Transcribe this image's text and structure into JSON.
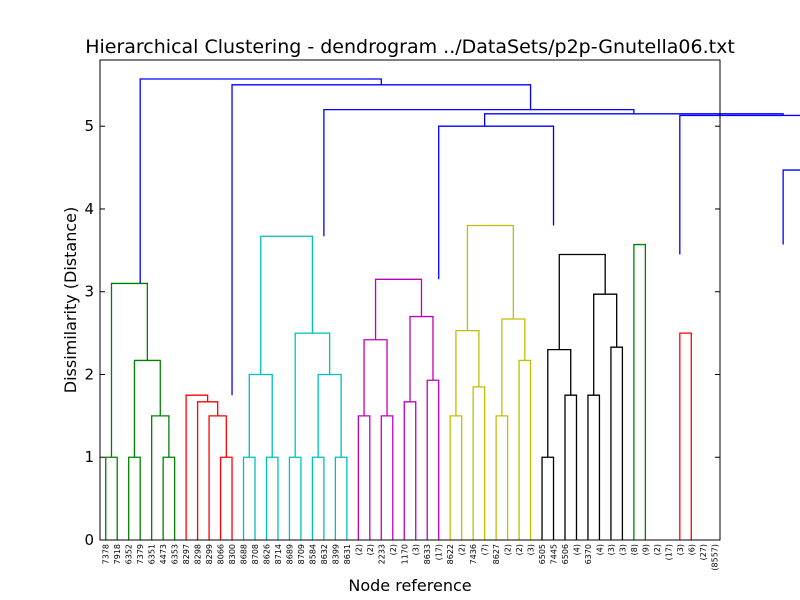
{
  "chart_data": {
    "type": "dendrogram",
    "title": "Hierarchical Clustering - dendrogram ../DataSets/p2p-Gnutella06.txt",
    "xlabel": "Node reference",
    "ylabel": "Dissimilarity (Distance)",
    "ylim": [
      0,
      5.8
    ],
    "yticks": [
      "0",
      "1",
      "2",
      "3",
      "4",
      "5"
    ],
    "leaves": [
      "7378",
      "7918",
      "6352",
      "7379",
      "6351",
      "4473",
      "6353",
      "8297",
      "8298",
      "8299",
      "8066",
      "8300",
      "8688",
      "8708",
      "8626",
      "8714",
      "8689",
      "8709",
      "8584",
      "8632",
      "8399",
      "8631",
      "(2)",
      "(2)",
      "2233",
      "(2)",
      "1170",
      "(3)",
      "8633",
      "(17)",
      "8622",
      "(2)",
      "7436",
      "(7)",
      "8627",
      "(2)",
      "(2)",
      "(3)",
      "6505",
      "7445",
      "6506",
      "(4)",
      "6370",
      "(4)",
      "(3)",
      "(3)",
      "(8)",
      "(9)",
      "(2)",
      "(17)",
      "(3)",
      "(6)",
      "(27)",
      "(8557)"
    ],
    "links": [
      {
        "color": "#008000",
        "height": 1.0,
        "left": [
          0,
          0
        ],
        "right": [
          1,
          0
        ]
      },
      {
        "color": "#008000",
        "height": 1.0,
        "left": [
          2,
          0
        ],
        "right": [
          3,
          0
        ]
      },
      {
        "color": "#008000",
        "height": 1.0,
        "left": [
          5,
          0
        ],
        "right": [
          6,
          0
        ]
      },
      {
        "color": "#008000",
        "height": 1.5,
        "left": [
          4,
          0
        ],
        "right": [
          5.5,
          1.0
        ]
      },
      {
        "color": "#008000",
        "height": 2.17,
        "left": [
          2.5,
          1.0
        ],
        "right": [
          4.75,
          1.5
        ]
      },
      {
        "color": "#008000",
        "height": 3.1,
        "left": [
          0.5,
          1.0
        ],
        "right": [
          3.625,
          2.17
        ]
      },
      {
        "color": "#ff0000",
        "height": 1.0,
        "left": [
          10,
          0
        ],
        "right": [
          11,
          0
        ]
      },
      {
        "color": "#ff0000",
        "height": 1.5,
        "left": [
          9,
          0
        ],
        "right": [
          10.5,
          1.0
        ]
      },
      {
        "color": "#ff0000",
        "height": 1.67,
        "left": [
          8,
          0
        ],
        "right": [
          9.75,
          1.5
        ]
      },
      {
        "color": "#ff0000",
        "height": 1.75,
        "left": [
          7,
          0
        ],
        "right": [
          8.875,
          1.67
        ]
      },
      {
        "color": "#00bfbf",
        "height": 1.0,
        "left": [
          12,
          0
        ],
        "right": [
          13,
          0
        ]
      },
      {
        "color": "#00bfbf",
        "height": 1.0,
        "left": [
          14,
          0
        ],
        "right": [
          15,
          0
        ]
      },
      {
        "color": "#00bfbf",
        "height": 1.0,
        "left": [
          16,
          0
        ],
        "right": [
          17,
          0
        ]
      },
      {
        "color": "#00bfbf",
        "height": 1.0,
        "left": [
          18,
          0
        ],
        "right": [
          19,
          0
        ]
      },
      {
        "color": "#00bfbf",
        "height": 1.0,
        "left": [
          20,
          0
        ],
        "right": [
          21,
          0
        ]
      },
      {
        "color": "#00bfbf",
        "height": 2.0,
        "left": [
          12.5,
          1.0
        ],
        "right": [
          14.5,
          1.0
        ]
      },
      {
        "color": "#00bfbf",
        "height": 2.0,
        "left": [
          18.5,
          1.0
        ],
        "right": [
          20.5,
          1.0
        ]
      },
      {
        "color": "#00bfbf",
        "height": 2.5,
        "left": [
          16.5,
          1.0
        ],
        "right": [
          19.5,
          2.0
        ]
      },
      {
        "color": "#00bfbf",
        "height": 3.67,
        "left": [
          13.5,
          2.0
        ],
        "right": [
          18.0,
          2.5
        ]
      },
      {
        "color": "#bf00bf",
        "height": 1.5,
        "left": [
          22,
          0
        ],
        "right": [
          23,
          0
        ]
      },
      {
        "color": "#bf00bf",
        "height": 1.5,
        "left": [
          24,
          0
        ],
        "right": [
          25,
          0
        ]
      },
      {
        "color": "#bf00bf",
        "height": 1.67,
        "left": [
          26,
          0
        ],
        "right": [
          27,
          0
        ]
      },
      {
        "color": "#bf00bf",
        "height": 1.93,
        "left": [
          28,
          0
        ],
        "right": [
          29,
          0
        ]
      },
      {
        "color": "#bf00bf",
        "height": 2.42,
        "left": [
          22.5,
          1.5
        ],
        "right": [
          24.5,
          1.5
        ]
      },
      {
        "color": "#bf00bf",
        "height": 2.7,
        "left": [
          26.5,
          1.67
        ],
        "right": [
          28.5,
          1.93
        ]
      },
      {
        "color": "#bf00bf",
        "height": 3.15,
        "left": [
          23.5,
          2.42
        ],
        "right": [
          27.5,
          2.7
        ]
      },
      {
        "color": "#bfbf00",
        "height": 1.5,
        "left": [
          30,
          0
        ],
        "right": [
          31,
          0
        ]
      },
      {
        "color": "#bfbf00",
        "height": 1.85,
        "left": [
          32,
          0
        ],
        "right": [
          33,
          0
        ]
      },
      {
        "color": "#bfbf00",
        "height": 1.5,
        "left": [
          34,
          0
        ],
        "right": [
          35,
          0
        ]
      },
      {
        "color": "#bfbf00",
        "height": 2.17,
        "left": [
          36,
          0
        ],
        "right": [
          37,
          0
        ]
      },
      {
        "color": "#bfbf00",
        "height": 2.53,
        "left": [
          30.5,
          1.5
        ],
        "right": [
          32.5,
          1.85
        ]
      },
      {
        "color": "#bfbf00",
        "height": 2.67,
        "left": [
          34.5,
          1.5
        ],
        "right": [
          36.5,
          2.17
        ]
      },
      {
        "color": "#bfbf00",
        "height": 3.8,
        "left": [
          31.5,
          2.53
        ],
        "right": [
          35.5,
          2.67
        ]
      },
      {
        "color": "#000000",
        "height": 1.0,
        "left": [
          38,
          0
        ],
        "right": [
          39,
          0
        ]
      },
      {
        "color": "#000000",
        "height": 1.75,
        "left": [
          40,
          0
        ],
        "right": [
          41,
          0
        ]
      },
      {
        "color": "#000000",
        "height": 2.3,
        "left": [
          38.5,
          1.0
        ],
        "right": [
          40.5,
          1.75
        ]
      },
      {
        "color": "#000000",
        "height": 1.75,
        "left": [
          42,
          0
        ],
        "right": [
          43,
          0
        ]
      },
      {
        "color": "#000000",
        "height": 2.33,
        "left": [
          44,
          0
        ],
        "right": [
          45,
          0
        ]
      },
      {
        "color": "#000000",
        "height": 2.97,
        "left": [
          42.5,
          1.75
        ],
        "right": [
          44.5,
          2.33
        ]
      },
      {
        "color": "#000000",
        "height": 3.45,
        "left": [
          39.5,
          2.3
        ],
        "right": [
          43.5,
          2.97
        ]
      },
      {
        "color": "#008000",
        "height": 3.57,
        "left": [
          46,
          0
        ],
        "right": [
          47,
          0
        ]
      },
      {
        "color": "#ff0000",
        "height": 2.5,
        "left": [
          50,
          0
        ],
        "right": [
          51,
          0
        ]
      },
      {
        "color": "#0000ff",
        "height": 5.57,
        "left": [
          3,
          3.1
        ],
        "right": [
          24,
          5.5
        ]
      },
      {
        "color": "#0000ff",
        "height": 5.5,
        "left": [
          11,
          1.75
        ],
        "right": [
          37,
          5.2
        ]
      },
      {
        "color": "#0000ff",
        "height": 5.2,
        "left": [
          19,
          3.67
        ],
        "right": [
          46,
          5.15
        ]
      },
      {
        "color": "#0000ff",
        "height": 5.15,
        "left": [
          33,
          5.0
        ],
        "right": [
          59,
          5.13
        ]
      },
      {
        "color": "#0000ff",
        "height": 5.0,
        "left": [
          29,
          3.15
        ],
        "right": [
          39,
          3.8
        ]
      },
      {
        "color": "#0000ff",
        "height": 5.13,
        "left": [
          50,
          3.45
        ],
        "right": [
          67,
          5.1
        ]
      },
      {
        "color": "#0000ff",
        "height": 5.1,
        "left": [
          62,
          4.47
        ],
        "right": [
          73,
          5.03
        ]
      },
      {
        "color": "#0000ff",
        "height": 4.47,
        "left": [
          59,
          3.57
        ],
        "right": [
          64,
          4.15
        ]
      },
      {
        "color": "#0000ff",
        "height": 4.15,
        "left": [
          64,
          0
        ],
        "right": [
          64,
          0
        ]
      },
      {
        "color": "#0000ff",
        "height": 5.03,
        "left": [
          71,
          0
        ],
        "right": [
          75,
          5.02
        ]
      },
      {
        "color": "#0000ff",
        "height": 5.02,
        "left": [
          75,
          0
        ],
        "right": [
          77,
          5.0
        ]
      },
      {
        "color": "#0000ff",
        "height": 5.0,
        "left": [
          77,
          0
        ],
        "right": [
          79,
          0
        ]
      }
    ]
  }
}
